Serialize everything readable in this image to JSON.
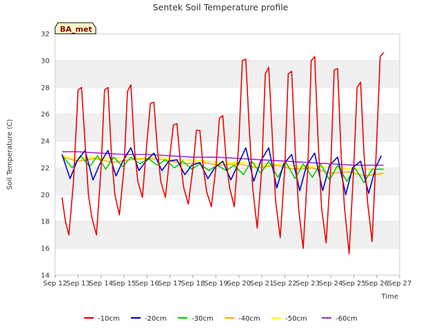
{
  "chart_data": {
    "type": "line",
    "title": "Sentek Soil Temperature profile",
    "xlabel": "Time",
    "ylabel": "Soil Temperature (C)",
    "site_label": "BA_met",
    "ylim": [
      14,
      32
    ],
    "yticks": [
      14,
      16,
      18,
      20,
      22,
      24,
      26,
      28,
      30,
      32
    ],
    "xlim": [
      12,
      27
    ],
    "xticks": [
      {
        "v": 12,
        "label": "Sep 12"
      },
      {
        "v": 13,
        "label": "Sep 13"
      },
      {
        "v": 14,
        "label": "Sep 14"
      },
      {
        "v": 15,
        "label": "Sep 15"
      },
      {
        "v": 16,
        "label": "Sep 16"
      },
      {
        "v": 17,
        "label": "Sep 17"
      },
      {
        "v": 18,
        "label": "Sep 18"
      },
      {
        "v": 19,
        "label": "Sep 19"
      },
      {
        "v": 20,
        "label": "Sep 20"
      },
      {
        "v": 21,
        "label": "Sep 21"
      },
      {
        "v": 22,
        "label": "Sep 22"
      },
      {
        "v": 23,
        "label": "Sep 23"
      },
      {
        "v": 24,
        "label": "Sep 24"
      },
      {
        "v": 25,
        "label": "Sep 25"
      },
      {
        "v": 26,
        "label": "Sep 26"
      },
      {
        "v": 27,
        "label": "Sep 27"
      }
    ],
    "grid": "horizontal bands",
    "legend_position": "bottom",
    "series": [
      {
        "name": "-10cm",
        "color": "#ee0000",
        "x": [
          12.3,
          12.45,
          12.6,
          12.8,
          13.0,
          13.15,
          13.3,
          13.45,
          13.6,
          13.8,
          14.0,
          14.15,
          14.3,
          14.45,
          14.6,
          14.8,
          15.0,
          15.15,
          15.3,
          15.45,
          15.6,
          15.8,
          16.0,
          16.15,
          16.3,
          16.45,
          16.6,
          16.8,
          17.0,
          17.15,
          17.3,
          17.45,
          17.6,
          17.8,
          18.0,
          18.15,
          18.3,
          18.45,
          18.6,
          18.8,
          19.0,
          19.15,
          19.3,
          19.45,
          19.6,
          19.8,
          20.0,
          20.15,
          20.3,
          20.45,
          20.6,
          20.8,
          21.0,
          21.15,
          21.3,
          21.45,
          21.6,
          21.8,
          22.0,
          22.15,
          22.3,
          22.45,
          22.6,
          22.8,
          23.0,
          23.15,
          23.3,
          23.45,
          23.6,
          23.8,
          24.0,
          24.15,
          24.3,
          24.45,
          24.6,
          24.8,
          25.0,
          25.15,
          25.3,
          25.45,
          25.6,
          25.8,
          26.0,
          26.15,
          26.3
        ],
        "y": [
          19.8,
          18.0,
          17.0,
          21.0,
          27.8,
          28.0,
          24.0,
          20.0,
          18.3,
          17.0,
          22.0,
          27.8,
          28.0,
          23.0,
          20.0,
          18.5,
          22.0,
          27.7,
          28.2,
          23.5,
          21.0,
          19.8,
          24.0,
          26.8,
          26.9,
          23.5,
          21.0,
          19.8,
          23.0,
          25.2,
          25.3,
          22.5,
          20.5,
          19.3,
          22.0,
          24.8,
          24.8,
          22.0,
          20.2,
          19.1,
          22.0,
          25.7,
          25.9,
          22.5,
          20.5,
          19.1,
          24.0,
          30.0,
          30.1,
          25.0,
          20.5,
          17.5,
          22.0,
          29.0,
          29.5,
          24.5,
          19.5,
          16.8,
          22.0,
          29.0,
          29.2,
          23.5,
          19.0,
          16.0,
          22.0,
          30.0,
          30.3,
          24.0,
          19.0,
          16.4,
          22.0,
          29.3,
          29.4,
          23.0,
          19.0,
          15.6,
          22.0,
          28.0,
          28.4,
          23.0,
          19.5,
          16.5,
          24.0,
          30.3,
          30.6
        ]
      },
      {
        "name": "-20cm",
        "color": "#0000cc",
        "x": [
          12.3,
          12.65,
          12.95,
          13.3,
          13.65,
          13.95,
          14.3,
          14.65,
          14.95,
          15.3,
          15.65,
          15.95,
          16.3,
          16.65,
          16.95,
          17.3,
          17.65,
          17.95,
          18.3,
          18.65,
          18.95,
          19.3,
          19.65,
          19.95,
          20.3,
          20.65,
          20.95,
          21.3,
          21.65,
          21.95,
          22.3,
          22.65,
          22.95,
          23.3,
          23.65,
          23.95,
          24.3,
          24.65,
          24.95,
          25.3,
          25.65,
          25.95,
          26.2
        ],
        "y": [
          23.0,
          21.2,
          22.5,
          23.3,
          21.1,
          22.3,
          23.3,
          21.4,
          22.5,
          23.5,
          21.8,
          22.5,
          23.1,
          21.8,
          22.5,
          22.6,
          21.5,
          22.2,
          22.4,
          21.2,
          22.0,
          22.5,
          21.1,
          22.2,
          23.5,
          21.0,
          22.5,
          23.5,
          20.5,
          22.3,
          23.0,
          20.3,
          22.2,
          23.1,
          20.3,
          22.2,
          22.8,
          20.0,
          22.0,
          22.5,
          20.1,
          22.0,
          22.9
        ]
      },
      {
        "name": "-30cm",
        "color": "#00cc00",
        "x": [
          12.3,
          12.75,
          13.1,
          13.5,
          13.85,
          14.2,
          14.55,
          14.95,
          15.3,
          15.7,
          16.05,
          16.45,
          16.8,
          17.2,
          17.55,
          17.95,
          18.3,
          18.7,
          19.05,
          19.45,
          19.8,
          20.2,
          20.55,
          20.95,
          21.3,
          21.7,
          22.05,
          22.45,
          22.8,
          23.2,
          23.55,
          23.95,
          24.3,
          24.7,
          25.05,
          25.45,
          25.8,
          26.3
        ],
        "y": [
          22.9,
          22.0,
          22.9,
          22.1,
          22.9,
          21.9,
          22.8,
          22.1,
          22.8,
          22.3,
          22.7,
          22.2,
          22.6,
          22.0,
          22.5,
          21.9,
          22.3,
          21.8,
          22.2,
          21.8,
          22.2,
          21.5,
          22.5,
          21.6,
          22.5,
          21.3,
          22.4,
          21.2,
          22.3,
          21.3,
          22.3,
          21.1,
          22.2,
          21.0,
          22.0,
          20.9,
          21.9,
          21.9
        ]
      },
      {
        "name": "-40cm",
        "color": "#ffaa00",
        "x": [
          12.3,
          13.0,
          13.7,
          14.5,
          15.2,
          16.0,
          16.8,
          17.6,
          18.4,
          19.2,
          20.0,
          20.8,
          21.6,
          22.4,
          23.2,
          24.0,
          24.8,
          25.5,
          26.3
        ],
        "y": [
          22.8,
          22.5,
          22.7,
          22.4,
          22.6,
          22.7,
          22.6,
          22.3,
          22.4,
          22.2,
          22.3,
          22.0,
          22.2,
          21.9,
          22.0,
          21.6,
          21.7,
          21.4,
          21.6
        ]
      },
      {
        "name": "-50cm",
        "color": "#ffff00",
        "x": [
          12.3,
          13.0,
          13.7,
          14.4,
          15.1,
          15.8,
          16.5,
          17.2,
          17.9,
          18.6,
          19.3,
          20.0,
          20.7,
          21.4,
          22.1,
          22.8,
          23.5,
          24.2,
          24.9,
          25.6,
          26.3
        ],
        "y": [
          22.9,
          22.7,
          22.8,
          22.7,
          22.8,
          22.7,
          22.8,
          22.6,
          22.6,
          22.5,
          22.4,
          22.4,
          22.3,
          22.3,
          22.2,
          22.1,
          22.1,
          22.0,
          21.9,
          21.9,
          21.9
        ]
      },
      {
        "name": "-60cm",
        "color": "#9932cc",
        "x": [
          12.3,
          13.0,
          14.0,
          15.0,
          16.0,
          17.0,
          18.0,
          19.0,
          20.0,
          21.0,
          22.0,
          23.0,
          24.0,
          25.0,
          26.3
        ],
        "y": [
          23.2,
          23.2,
          23.1,
          23.0,
          23.0,
          22.9,
          22.8,
          22.8,
          22.7,
          22.6,
          22.5,
          22.4,
          22.3,
          22.2,
          22.2
        ]
      }
    ]
  }
}
